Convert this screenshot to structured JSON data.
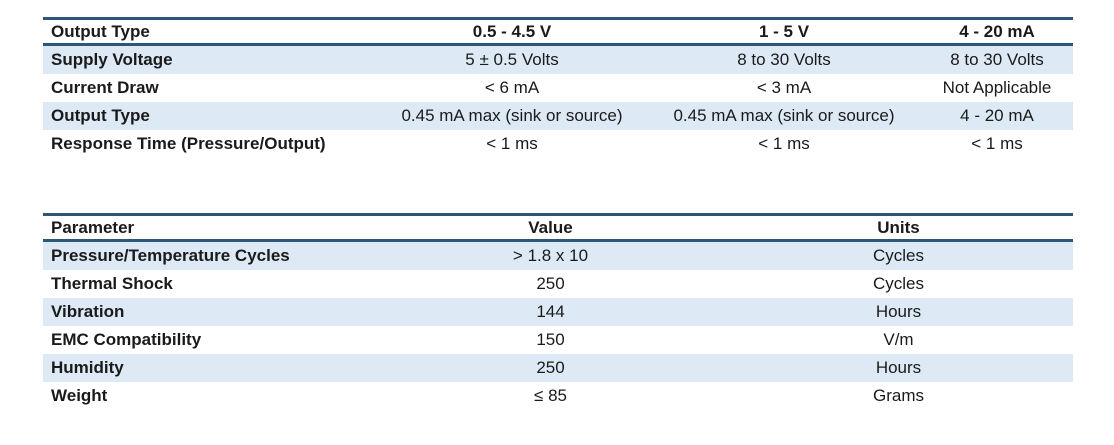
{
  "table1": {
    "headers": [
      "Output Type",
      "0.5 - 4.5 V",
      "1 - 5 V",
      "4 - 20 mA"
    ],
    "rows": [
      [
        "Supply Voltage",
        "5 ± 0.5 Volts",
        "8 to 30 Volts",
        "8 to 30 Volts"
      ],
      [
        "Current Draw",
        "< 6 mA",
        "< 3 mA",
        "Not Applicable"
      ],
      [
        "Output Type",
        "0.45 mA max (sink or source)",
        "0.45 mA max (sink or source)",
        "4 - 20 mA"
      ],
      [
        "Response Time (Pressure/Output)",
        "< 1 ms",
        "< 1 ms",
        "< 1 ms"
      ]
    ]
  },
  "table2": {
    "headers": [
      "Parameter",
      "Value",
      "Units"
    ],
    "rows": [
      [
        "Pressure/Temperature Cycles",
        "> 1.8 x 10",
        "Cycles"
      ],
      [
        "Thermal Shock",
        "250",
        "Cycles"
      ],
      [
        "Vibration",
        "144",
        "Hours"
      ],
      [
        "EMC Compatibility",
        "150",
        "V/m"
      ],
      [
        "Humidity",
        "250",
        "Hours"
      ],
      [
        "Weight",
        "≤ 85",
        "Grams"
      ]
    ]
  },
  "colors": {
    "header_rule": "#2d5677",
    "row_shade": "#ddeaf6",
    "text": "#1a1a1a"
  }
}
